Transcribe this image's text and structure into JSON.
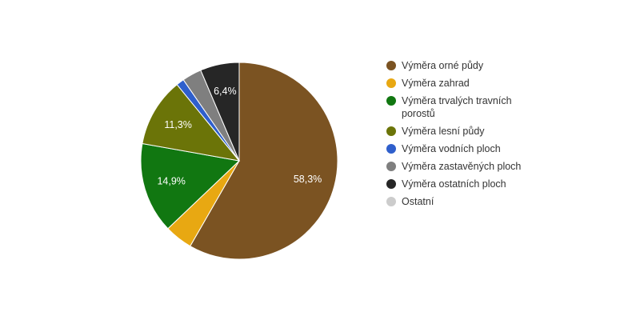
{
  "chart_data": {
    "type": "pie",
    "title": "",
    "series": [
      {
        "slices": [
          {
            "label": "Výměra orné půdy",
            "value": 58.3,
            "color": "#7b5322",
            "data_label": "58,3%"
          },
          {
            "label": "Výměra zahrad",
            "value": 4.6,
            "color": "#e8a812",
            "data_label": ""
          },
          {
            "label": "Výměra trvalých travních porostů",
            "value": 14.9,
            "color": "#117711",
            "data_label": "14,9%"
          },
          {
            "label": "Výměra lesní půdy",
            "value": 11.3,
            "color": "#6b7408",
            "data_label": "11,3%"
          },
          {
            "label": "Výměra vodních ploch",
            "value": 1.3,
            "color": "#2f5fcc",
            "data_label": ""
          },
          {
            "label": "Výměra zastavěných ploch",
            "value": 3.2,
            "color": "#7f7f7f",
            "data_label": ""
          },
          {
            "label": "Výměra ostatních ploch",
            "value": 6.4,
            "color": "#262626",
            "data_label": "6,4%"
          },
          {
            "label": "Ostatní",
            "value": 0,
            "color": "#cccccc",
            "data_label": ""
          }
        ]
      }
    ],
    "legend_position": "right"
  }
}
